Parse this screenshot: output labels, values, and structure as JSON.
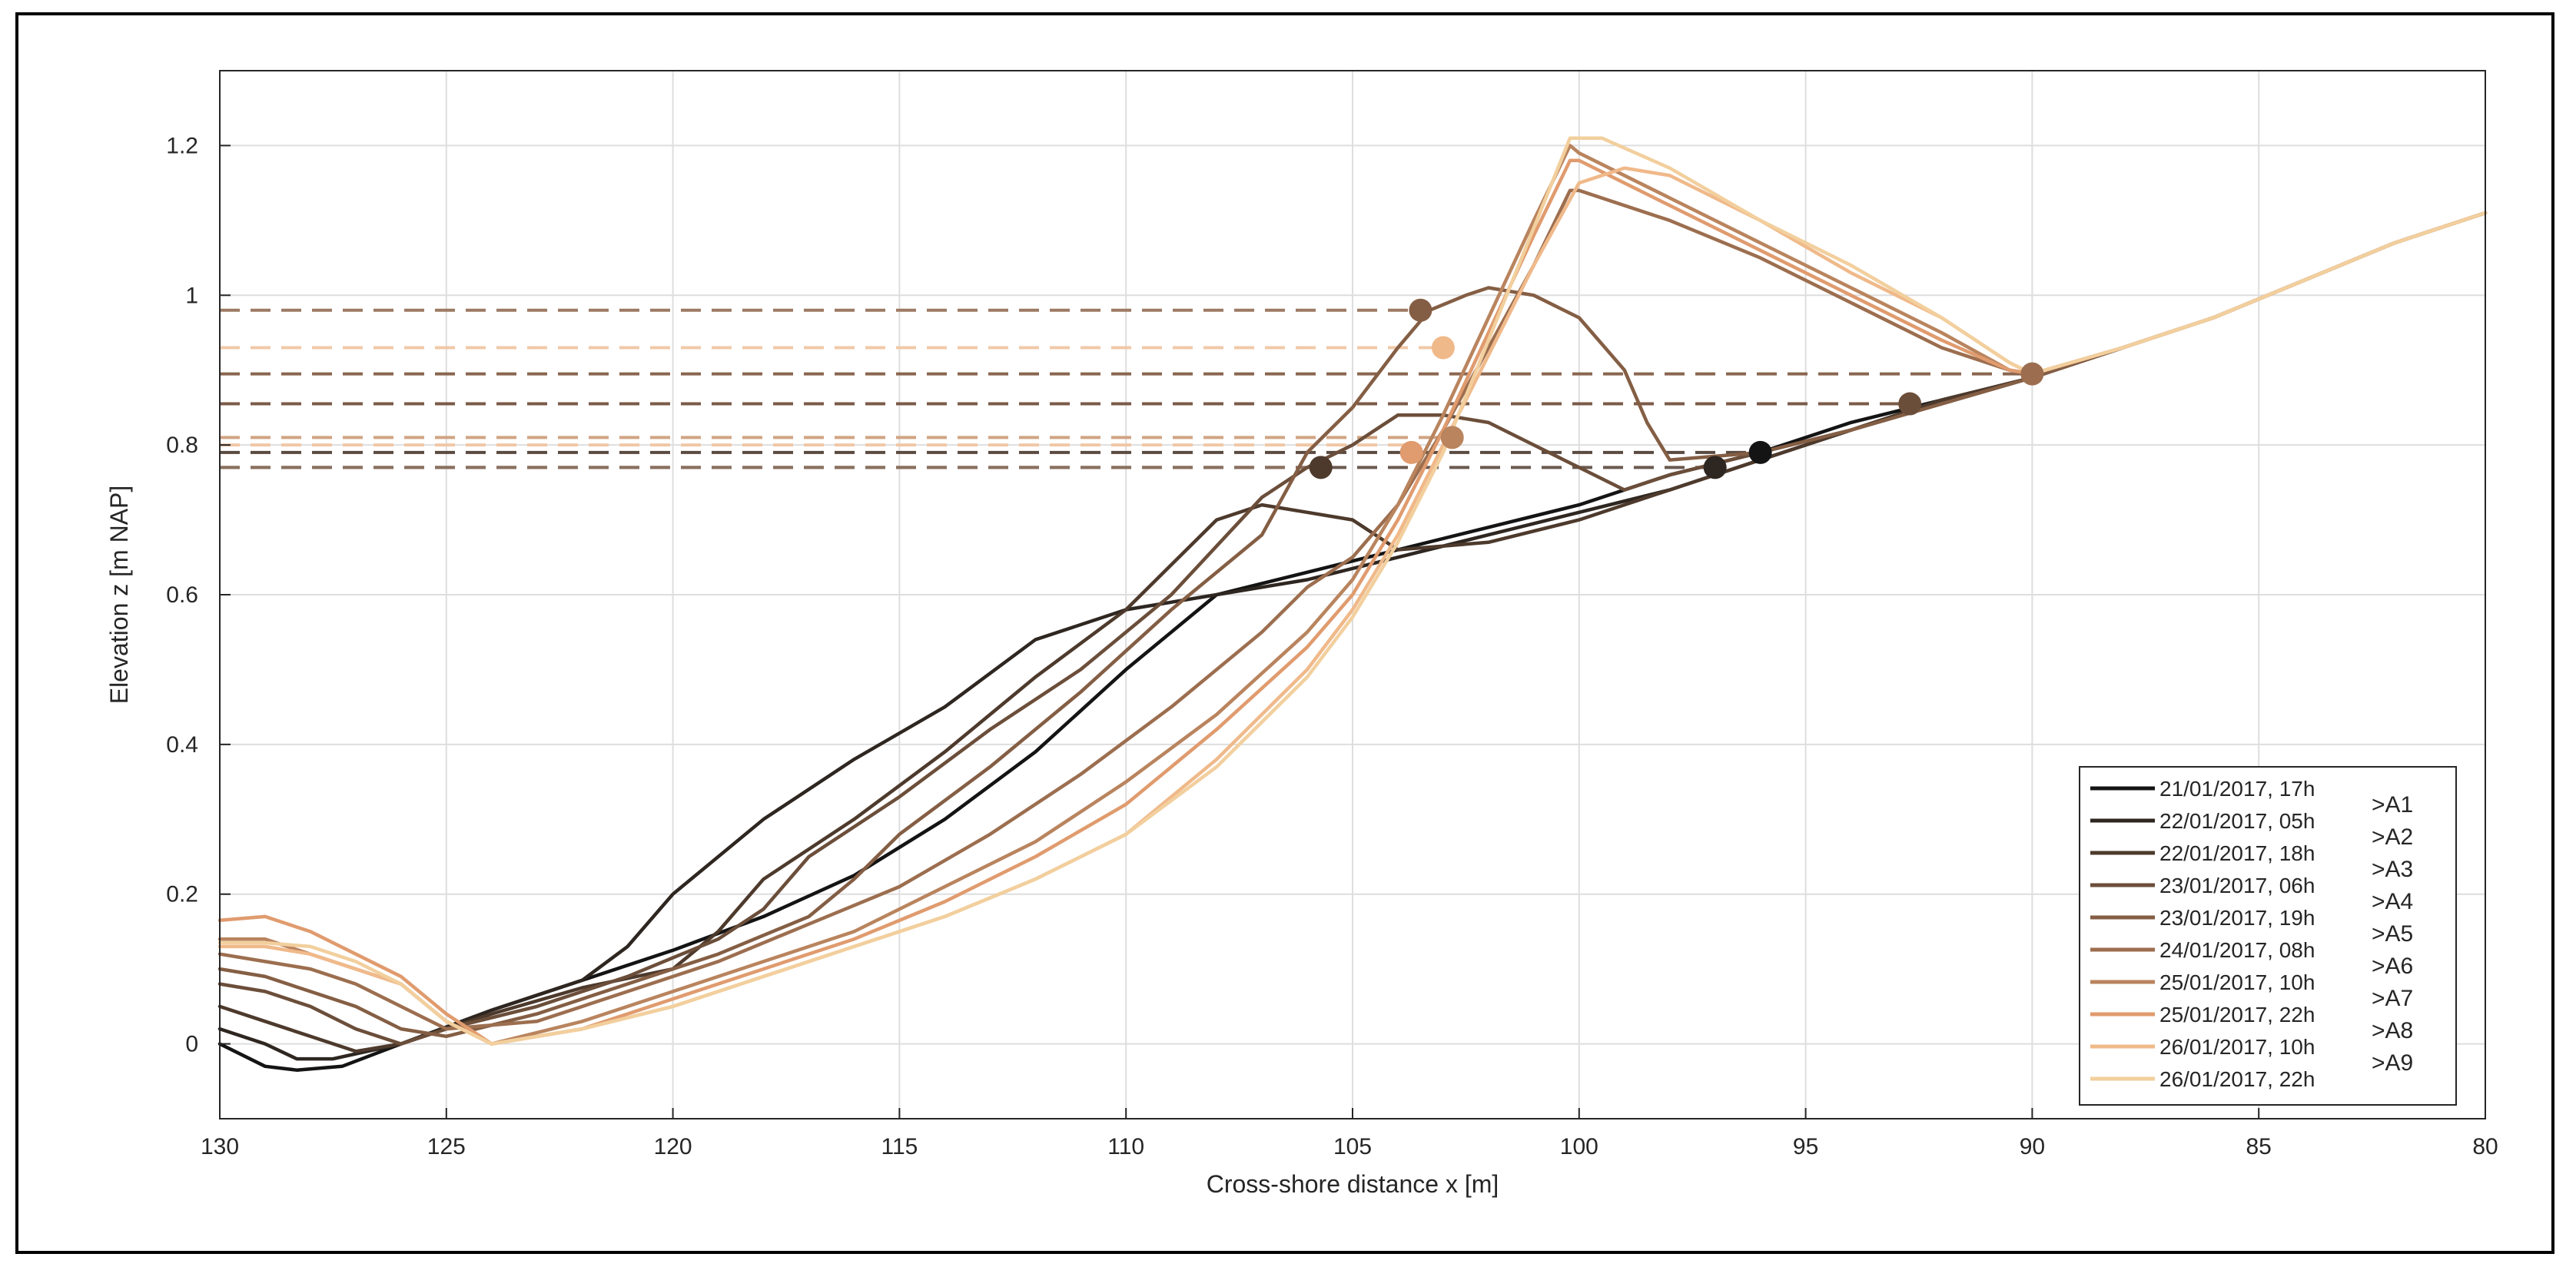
{
  "chart_data": {
    "type": "line",
    "title": "",
    "xlabel": "Cross-shore distance x [m]",
    "ylabel": "Elevation z [m NAP]",
    "xlim": [
      130,
      80
    ],
    "ylim": [
      -0.1,
      1.3
    ],
    "x_reversed": true,
    "xticks": [
      130,
      125,
      120,
      115,
      110,
      105,
      100,
      95,
      90,
      85,
      80
    ],
    "yticks": [
      0,
      0.2,
      0.4,
      0.6,
      0.8,
      1,
      1.2
    ],
    "ytick_labels": [
      "0",
      "0.2",
      "0.4",
      "0.6",
      "0.8",
      "1",
      "1.2"
    ],
    "grid": true,
    "legend_position": "bottom-right",
    "annotations": [
      ">A1",
      ">A2",
      ">A3",
      ">A4",
      ">A5",
      ">A6",
      ">A7",
      ">A8",
      ">A9"
    ],
    "series": [
      {
        "name": "21/01/2017, 17h",
        "color": "#141414",
        "x": [
          130,
          129,
          128.3,
          127.3,
          126,
          124,
          122,
          120,
          118,
          116,
          114,
          112,
          110,
          108,
          106,
          104,
          102,
          100,
          98,
          96,
          94,
          92,
          90,
          88,
          86,
          84,
          82,
          80
        ],
        "y": [
          0.0,
          -0.03,
          -0.035,
          -0.03,
          0.0,
          0.045,
          0.085,
          0.125,
          0.17,
          0.225,
          0.3,
          0.39,
          0.5,
          0.6,
          0.63,
          0.66,
          0.69,
          0.72,
          0.76,
          0.79,
          0.83,
          0.86,
          0.89,
          0.93,
          0.97,
          1.02,
          1.07,
          1.11
        ],
        "marker": {
          "x": 96,
          "y": 0.79
        }
      },
      {
        "name": "22/01/2017, 05h",
        "color": "#2e2620",
        "x": [
          130,
          129,
          128.3,
          127.5,
          126,
          124,
          122,
          121,
          120,
          118,
          116,
          114,
          112,
          110,
          108,
          106,
          104,
          102,
          100,
          98,
          96,
          94,
          92,
          90,
          88,
          86,
          84,
          82,
          80
        ],
        "y": [
          0.02,
          0.0,
          -0.02,
          -0.02,
          0.0,
          0.045,
          0.085,
          0.13,
          0.2,
          0.3,
          0.38,
          0.45,
          0.54,
          0.58,
          0.6,
          0.62,
          0.65,
          0.68,
          0.71,
          0.74,
          0.78,
          0.82,
          0.86,
          0.89,
          0.93,
          0.97,
          1.02,
          1.07,
          1.11
        ],
        "marker": {
          "x": 97,
          "y": 0.77
        }
      },
      {
        "name": "22/01/2017, 18h",
        "color": "#4d3a2c",
        "x": [
          130,
          129,
          128,
          127,
          126,
          124,
          122,
          120,
          119,
          118,
          116,
          114,
          112,
          110,
          108,
          107,
          106,
          105,
          104,
          102,
          100,
          98,
          96,
          94,
          92,
          90,
          88,
          86,
          84,
          82,
          80
        ],
        "y": [
          0.05,
          0.03,
          0.01,
          -0.01,
          0.0,
          0.04,
          0.075,
          0.1,
          0.15,
          0.22,
          0.3,
          0.39,
          0.49,
          0.58,
          0.7,
          0.72,
          0.71,
          0.7,
          0.66,
          0.67,
          0.7,
          0.74,
          0.78,
          0.82,
          0.86,
          0.89,
          0.93,
          0.97,
          1.02,
          1.07,
          1.11
        ],
        "marker": {
          "x": 105.7,
          "y": 0.77
        }
      },
      {
        "name": "23/01/2017, 06h",
        "color": "#6b4e3a",
        "x": [
          130,
          129,
          128,
          127,
          126,
          125,
          123,
          121,
          119,
          118,
          117,
          115,
          113,
          111,
          109,
          107,
          106,
          105,
          104,
          103,
          102,
          101,
          100,
          99,
          98,
          96,
          94,
          92,
          90,
          88,
          86,
          84,
          82,
          80
        ],
        "y": [
          0.08,
          0.07,
          0.05,
          0.02,
          0.0,
          0.02,
          0.05,
          0.09,
          0.14,
          0.18,
          0.25,
          0.33,
          0.42,
          0.5,
          0.6,
          0.73,
          0.77,
          0.8,
          0.84,
          0.84,
          0.83,
          0.8,
          0.77,
          0.74,
          0.76,
          0.79,
          0.82,
          0.855,
          0.89,
          0.93,
          0.97,
          1.02,
          1.07,
          1.11
        ],
        "marker": {
          "x": 92.7,
          "y": 0.855
        }
      },
      {
        "name": "23/01/2017, 19h",
        "color": "#845e44",
        "x": [
          130,
          129,
          128,
          127,
          126,
          125,
          123,
          121,
          119,
          117,
          116,
          115,
          113,
          111,
          109,
          107,
          106,
          105,
          104,
          103.3,
          102.5,
          102,
          101,
          100,
          99,
          98.5,
          98,
          96,
          94,
          92,
          90,
          88,
          86,
          84,
          82,
          80
        ],
        "y": [
          0.1,
          0.09,
          0.07,
          0.05,
          0.02,
          0.01,
          0.04,
          0.08,
          0.12,
          0.17,
          0.22,
          0.28,
          0.37,
          0.47,
          0.58,
          0.68,
          0.79,
          0.85,
          0.93,
          0.98,
          1.0,
          1.01,
          1.0,
          0.97,
          0.9,
          0.83,
          0.78,
          0.79,
          0.82,
          0.855,
          0.89,
          0.93,
          0.97,
          1.02,
          1.07,
          1.11
        ],
        "marker": {
          "x": 103.5,
          "y": 0.98
        }
      },
      {
        "name": "24/01/2017, 08h",
        "color": "#9c6e4f",
        "x": [
          130,
          129,
          128,
          127,
          126,
          125,
          123,
          121,
          119,
          117,
          115,
          113,
          111,
          109,
          107,
          106,
          105,
          104,
          103,
          102,
          101,
          100.2,
          100,
          98,
          96,
          94,
          92,
          90.5,
          90,
          88,
          86,
          84,
          82,
          80
        ],
        "y": [
          0.12,
          0.11,
          0.1,
          0.08,
          0.05,
          0.02,
          0.03,
          0.07,
          0.11,
          0.16,
          0.21,
          0.28,
          0.36,
          0.45,
          0.55,
          0.61,
          0.65,
          0.72,
          0.82,
          0.93,
          1.04,
          1.14,
          1.14,
          1.1,
          1.05,
          0.99,
          0.93,
          0.9,
          0.895,
          0.93,
          0.97,
          1.02,
          1.07,
          1.11
        ],
        "marker": {
          "x": 90,
          "y": 0.895
        }
      },
      {
        "name": "25/01/2017, 10h",
        "color": "#b9845e",
        "x": [
          130,
          129,
          128,
          127,
          126,
          125,
          124,
          122,
          120,
          118,
          116,
          114,
          112,
          110,
          108,
          106,
          105,
          104,
          103,
          102,
          101,
          100.2,
          100,
          98,
          96,
          94,
          92,
          90.5,
          90,
          88,
          86,
          84,
          82,
          80
        ],
        "y": [
          0.14,
          0.14,
          0.12,
          0.1,
          0.08,
          0.03,
          0.0,
          0.03,
          0.07,
          0.11,
          0.15,
          0.21,
          0.27,
          0.35,
          0.44,
          0.55,
          0.62,
          0.72,
          0.84,
          0.97,
          1.1,
          1.2,
          1.19,
          1.13,
          1.07,
          1.01,
          0.95,
          0.9,
          0.895,
          0.93,
          0.97,
          1.02,
          1.07,
          1.11
        ],
        "marker": {
          "x": 102.8,
          "y": 0.81
        }
      },
      {
        "name": "25/01/2017, 22h",
        "color": "#e09b6e",
        "x": [
          130,
          129,
          128,
          127,
          126,
          125,
          124,
          122,
          120,
          118,
          116,
          114,
          112,
          110,
          108,
          106,
          105,
          104,
          103,
          102,
          101,
          100.2,
          100,
          98,
          96,
          94,
          92,
          90.5,
          90,
          88,
          86,
          84,
          82,
          80
        ],
        "y": [
          0.165,
          0.17,
          0.15,
          0.12,
          0.09,
          0.04,
          0.0,
          0.02,
          0.06,
          0.1,
          0.14,
          0.19,
          0.25,
          0.32,
          0.42,
          0.53,
          0.6,
          0.7,
          0.82,
          0.95,
          1.08,
          1.18,
          1.18,
          1.12,
          1.06,
          1.0,
          0.94,
          0.9,
          0.895,
          0.93,
          0.97,
          1.02,
          1.07,
          1.11
        ],
        "marker": {
          "x": 103.7,
          "y": 0.79
        }
      },
      {
        "name": "26/01/2017, 10h",
        "color": "#f0b98a",
        "x": [
          130,
          129,
          128,
          127,
          126,
          125,
          124,
          122,
          120,
          118,
          116,
          114,
          112,
          110,
          108,
          106,
          105,
          104,
          103,
          102,
          101,
          100,
          99,
          98,
          96,
          94,
          92,
          90.5,
          90,
          88,
          86,
          84,
          82,
          80
        ],
        "y": [
          0.13,
          0.13,
          0.12,
          0.1,
          0.08,
          0.03,
          0.0,
          0.02,
          0.05,
          0.09,
          0.13,
          0.17,
          0.22,
          0.28,
          0.38,
          0.5,
          0.58,
          0.68,
          0.8,
          0.92,
          1.04,
          1.15,
          1.17,
          1.16,
          1.1,
          1.03,
          0.97,
          0.91,
          0.895,
          0.93,
          0.97,
          1.02,
          1.07,
          1.11
        ],
        "marker": {
          "x": 103,
          "y": 0.93
        }
      },
      {
        "name": "26/01/2017, 22h",
        "color": "#f2cf9d",
        "x": [
          130,
          129,
          128,
          127,
          126,
          125,
          124,
          122,
          120,
          118,
          116,
          114,
          112,
          110,
          108,
          106,
          105,
          104,
          103,
          102,
          101,
          100.2,
          99.5,
          98,
          96,
          94,
          92,
          90.5,
          90,
          88,
          86,
          84,
          82,
          80
        ],
        "y": [
          0.135,
          0.135,
          0.13,
          0.11,
          0.08,
          0.03,
          0.0,
          0.02,
          0.05,
          0.09,
          0.13,
          0.17,
          0.22,
          0.28,
          0.37,
          0.49,
          0.57,
          0.67,
          0.79,
          0.94,
          1.09,
          1.21,
          1.21,
          1.17,
          1.1,
          1.04,
          0.97,
          0.91,
          0.895,
          0.93,
          0.97,
          1.02,
          1.07,
          1.11
        ],
        "marker": null
      }
    ],
    "reference_levels": [
      {
        "y": 0.98,
        "x_to": 103.5,
        "color": "#9c7a64"
      },
      {
        "y": 0.93,
        "x_to": 103,
        "color": "#f0c9a8"
      },
      {
        "y": 0.895,
        "x_to": 90,
        "color": "#8a6650"
      },
      {
        "y": 0.855,
        "x_to": 92.7,
        "color": "#7a5a48"
      },
      {
        "y": 0.81,
        "x_to": 102.8,
        "color": "#d1a483"
      },
      {
        "y": 0.8,
        "x_to": 103.7,
        "color": "#f0c7a6"
      },
      {
        "y": 0.79,
        "x_to": 96,
        "color": "#5a4a40"
      },
      {
        "y": 0.77,
        "x_to": 97,
        "color": "#6a5a50"
      },
      {
        "y": 0.77,
        "x_to": 105.7,
        "color": "#8a7060"
      }
    ]
  }
}
